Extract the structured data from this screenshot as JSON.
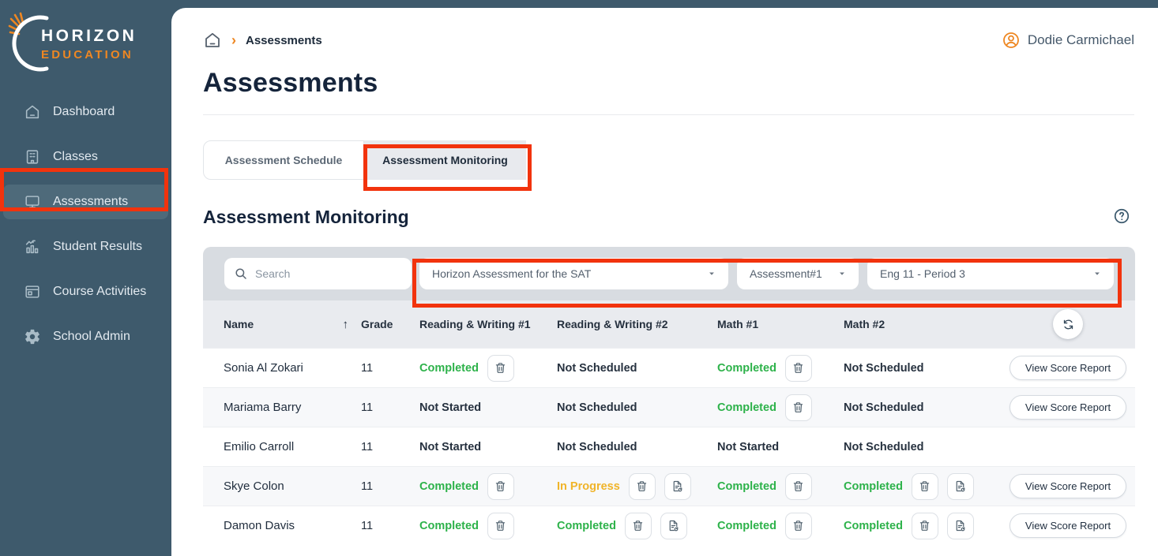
{
  "sidebar": {
    "logo": {
      "line1": "HORIZON",
      "line2": "EDUCATION"
    },
    "items": [
      {
        "key": "dashboard",
        "label": "Dashboard",
        "icon": "home-icon",
        "active": false
      },
      {
        "key": "classes",
        "label": "Classes",
        "icon": "building-icon",
        "active": false
      },
      {
        "key": "assessments",
        "label": "Assessments",
        "icon": "monitor-icon",
        "active": true
      },
      {
        "key": "student-results",
        "label": "Student Results",
        "icon": "bar-chart-icon",
        "active": false
      },
      {
        "key": "course-activities",
        "label": "Course Activities",
        "icon": "window-icon",
        "active": false
      },
      {
        "key": "school-admin",
        "label": "School Admin",
        "icon": "gear-icon",
        "active": false
      }
    ]
  },
  "header": {
    "breadcrumb": [
      "Assessments"
    ],
    "user_name": "Dodie Carmichael"
  },
  "page": {
    "title": "Assessments"
  },
  "tabs": [
    {
      "label": "Assessment Schedule",
      "active": false
    },
    {
      "label": "Assessment Monitoring",
      "active": true
    }
  ],
  "section": {
    "title": "Assessment Monitoring"
  },
  "filters": {
    "search_placeholder": "Search",
    "dropdowns": [
      {
        "key": "assessment-type",
        "value": "Horizon Assessment for the SAT"
      },
      {
        "key": "assessment-number",
        "value": "Assessment#1"
      },
      {
        "key": "class-period",
        "value": "Eng 11 - Period 3"
      }
    ]
  },
  "table": {
    "columns": [
      "Name",
      "Grade",
      "Reading & Writing #1",
      "Reading & Writing #2",
      "Math #1",
      "Math #2"
    ],
    "view_report_label": "View Score Report",
    "rows": [
      {
        "name": "Sonia Al Zokari",
        "grade": "11",
        "has_report": true,
        "cells": [
          {
            "status": "Completed",
            "state": "completed",
            "actions": [
              "trash"
            ]
          },
          {
            "status": "Not Scheduled",
            "state": "not-scheduled",
            "actions": []
          },
          {
            "status": "Completed",
            "state": "completed",
            "actions": [
              "trash"
            ]
          },
          {
            "status": "Not Scheduled",
            "state": "not-scheduled",
            "actions": []
          }
        ]
      },
      {
        "name": "Mariama Barry",
        "grade": "11",
        "has_report": true,
        "cells": [
          {
            "status": "Not Started",
            "state": "not-started",
            "actions": []
          },
          {
            "status": "Not Scheduled",
            "state": "not-scheduled",
            "actions": []
          },
          {
            "status": "Completed",
            "state": "completed",
            "actions": [
              "trash"
            ]
          },
          {
            "status": "Not Scheduled",
            "state": "not-scheduled",
            "actions": []
          }
        ]
      },
      {
        "name": "Emilio Carroll",
        "grade": "11",
        "has_report": false,
        "cells": [
          {
            "status": "Not Started",
            "state": "not-started",
            "actions": []
          },
          {
            "status": "Not Scheduled",
            "state": "not-scheduled",
            "actions": []
          },
          {
            "status": "Not Started",
            "state": "not-started",
            "actions": []
          },
          {
            "status": "Not Scheduled",
            "state": "not-scheduled",
            "actions": []
          }
        ]
      },
      {
        "name": "Skye Colon",
        "grade": "11",
        "has_report": true,
        "cells": [
          {
            "status": "Completed",
            "state": "completed",
            "actions": [
              "trash"
            ]
          },
          {
            "status": "In Progress",
            "state": "in-progress",
            "actions": [
              "trash",
              "file-sync"
            ]
          },
          {
            "status": "Completed",
            "state": "completed",
            "actions": [
              "trash"
            ]
          },
          {
            "status": "Completed",
            "state": "completed",
            "actions": [
              "trash",
              "file-sync"
            ]
          }
        ]
      },
      {
        "name": "Damon Davis",
        "grade": "11",
        "has_report": true,
        "cells": [
          {
            "status": "Completed",
            "state": "completed",
            "actions": [
              "trash"
            ]
          },
          {
            "status": "Completed",
            "state": "completed",
            "actions": [
              "trash",
              "file-sync"
            ]
          },
          {
            "status": "Completed",
            "state": "completed",
            "actions": [
              "trash"
            ]
          },
          {
            "status": "Completed",
            "state": "completed",
            "actions": [
              "trash",
              "file-sync"
            ]
          }
        ]
      }
    ]
  },
  "icons": {
    "home-icon": "house outline",
    "building-icon": "school building",
    "monitor-icon": "display screen",
    "bar-chart-icon": "bars with trend arrow",
    "window-icon": "app window",
    "gear-icon": "settings cog",
    "search-icon": "magnifier",
    "chevron-right-icon": "breadcrumb separator",
    "user-icon": "person in circle",
    "help-icon": "question mark circle",
    "refresh-icon": "circular arrows",
    "trash-icon": "delete bin",
    "file-sync-icon": "document with reload arrow",
    "caret-down-icon": "dropdown triangle",
    "sort-up-icon": "ascending sort arrow",
    "sunburst-crescent-logo": "horizon logo mark"
  },
  "colors": {
    "sidebar_bg": "#3e5a6c",
    "sidebar_active_bg": "#4e6a7a",
    "brand_orange": "#ee8722",
    "annotation_red": "#f2330d",
    "status_completed": "#2db24a",
    "status_in_progress": "#f0b429",
    "status_neutral": "#26313f",
    "filter_strip_bg": "#d8dce1",
    "table_header_bg": "#e9ebef"
  }
}
